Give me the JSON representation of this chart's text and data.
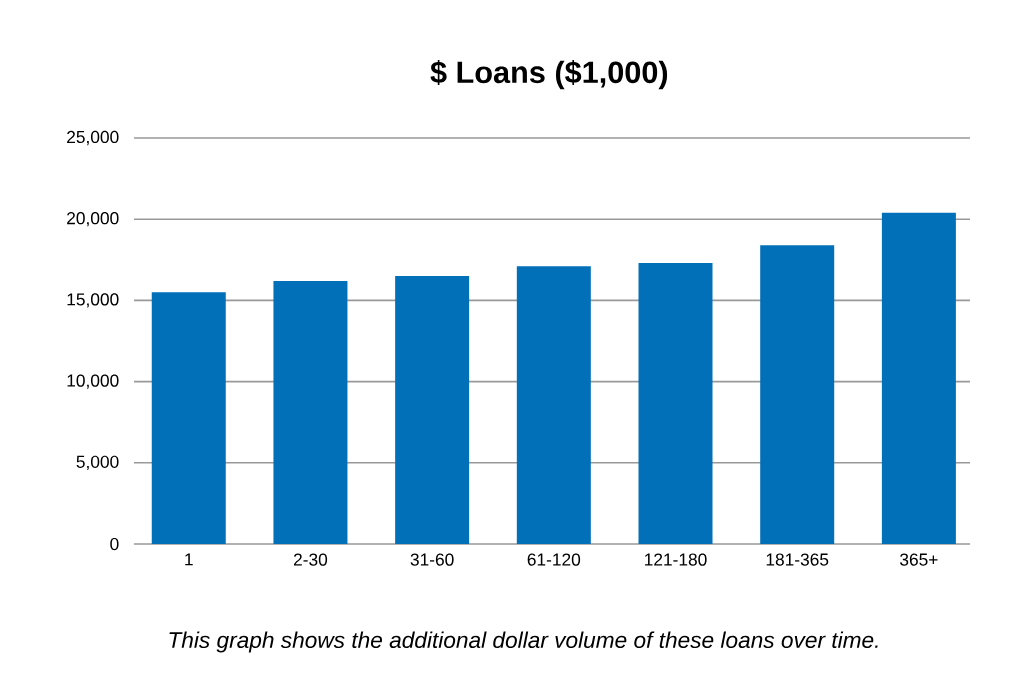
{
  "chart_data": {
    "type": "bar",
    "title": "$ Loans ($1,000)",
    "categories": [
      "1",
      "2-30",
      "31-60",
      "61-120",
      "121-180",
      "181-365",
      "365+"
    ],
    "values": [
      15500,
      16200,
      16500,
      17100,
      17300,
      18400,
      20400
    ],
    "color": "#0270b8",
    "ylim": [
      0,
      25000
    ],
    "yticks": [
      {
        "value": 0,
        "label": "0"
      },
      {
        "value": 5000,
        "label": "5,000"
      },
      {
        "value": 10000,
        "label": "10,000"
      },
      {
        "value": 15000,
        "label": "15,000"
      },
      {
        "value": 20000,
        "label": "20,000"
      },
      {
        "value": 25000,
        "label": "25,000"
      }
    ],
    "grid": "y",
    "annotations": [
      "This graph shows the additional dollar volume of these loans over time."
    ]
  }
}
